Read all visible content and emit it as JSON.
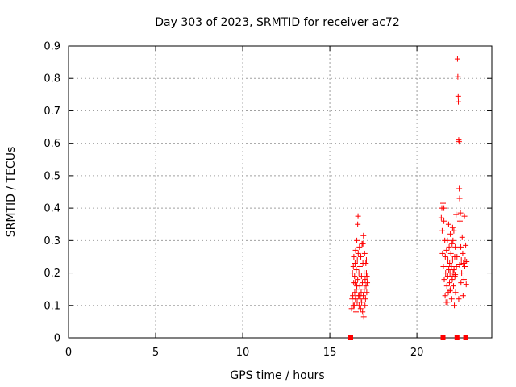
{
  "chart_data": {
    "type": "scatter",
    "title": "Day 303 of 2023, SRMTID for receiver ac72",
    "xlabel": "GPS time / hours",
    "ylabel": "SRMTID / TECUs",
    "xlim": [
      0,
      24.3
    ],
    "ylim": [
      0,
      0.9
    ],
    "xticks": [
      0,
      5,
      10,
      15,
      20
    ],
    "yticks": [
      0,
      0.1,
      0.2,
      0.3,
      0.4,
      0.5,
      0.6,
      0.7,
      0.8,
      0.9
    ],
    "xtick_labels": [
      "0",
      "5",
      "10",
      "15",
      "20"
    ],
    "ytick_labels": [
      "0",
      "0.1",
      "0.2",
      "0.3",
      "0.4",
      "0.5",
      "0.6",
      "0.7",
      "0.8",
      "0.9"
    ],
    "grid": true,
    "marker_color": "#ff0000",
    "series": [
      {
        "marker": "plus",
        "points": [
          [
            16.25,
            0.09
          ],
          [
            16.28,
            0.12
          ],
          [
            16.3,
            0.2
          ],
          [
            16.32,
            0.13
          ],
          [
            16.35,
            0.22
          ],
          [
            16.37,
            0.17
          ],
          [
            16.38,
            0.25
          ],
          [
            16.4,
            0.1
          ],
          [
            16.42,
            0.19
          ],
          [
            16.43,
            0.14
          ],
          [
            16.45,
            0.23
          ],
          [
            16.47,
            0.12
          ],
          [
            16.48,
            0.27
          ],
          [
            16.5,
            0.08
          ],
          [
            16.52,
            0.21
          ],
          [
            16.53,
            0.15
          ],
          [
            16.55,
            0.3
          ],
          [
            16.57,
            0.11
          ],
          [
            16.58,
            0.24
          ],
          [
            16.6,
            0.35
          ],
          [
            16.6,
            0.18
          ],
          [
            16.62,
            0.375
          ],
          [
            16.63,
            0.26
          ],
          [
            16.65,
            0.13
          ],
          [
            16.67,
            0.2
          ],
          [
            16.68,
            0.1
          ],
          [
            16.7,
            0.28
          ],
          [
            16.72,
            0.16
          ],
          [
            16.73,
            0.22
          ],
          [
            16.75,
            0.12
          ],
          [
            16.77,
            0.09
          ],
          [
            16.78,
            0.25
          ],
          [
            16.8,
            0.14
          ],
          [
            16.82,
            0.19
          ],
          [
            16.83,
            0.11
          ],
          [
            16.85,
            0.29
          ],
          [
            16.87,
            0.17
          ],
          [
            16.88,
            0.08
          ],
          [
            16.9,
            0.23
          ],
          [
            16.92,
            0.13
          ],
          [
            16.93,
            0.315
          ],
          [
            16.95,
            0.065
          ],
          [
            16.97,
            0.2
          ],
          [
            16.98,
            0.15
          ],
          [
            17.0,
            0.26
          ],
          [
            17.02,
            0.1
          ],
          [
            17.03,
            0.18
          ],
          [
            17.05,
            0.12
          ],
          [
            17.07,
            0.23
          ],
          [
            17.08,
            0.16
          ],
          [
            17.1,
            0.2
          ],
          [
            17.12,
            0.14
          ],
          [
            17.13,
            0.19
          ],
          [
            17.15,
            0.17
          ],
          [
            17.1,
            0.24
          ],
          [
            16.45,
            0.17
          ],
          [
            16.35,
            0.1
          ],
          [
            16.7,
            0.13
          ],
          [
            16.9,
            0.29
          ],
          [
            16.55,
            0.16
          ],
          [
            21.4,
            0.37
          ],
          [
            21.43,
            0.4
          ],
          [
            21.45,
            0.33
          ],
          [
            21.47,
            0.26
          ],
          [
            21.5,
            0.415
          ],
          [
            21.52,
            0.22
          ],
          [
            21.55,
            0.36
          ],
          [
            21.57,
            0.18
          ],
          [
            21.6,
            0.3
          ],
          [
            21.62,
            0.13
          ],
          [
            21.63,
            0.25
          ],
          [
            21.65,
            0.2
          ],
          [
            21.67,
            0.11
          ],
          [
            21.7,
            0.27
          ],
          [
            21.72,
            0.16
          ],
          [
            21.73,
            0.22
          ],
          [
            21.75,
            0.3
          ],
          [
            21.77,
            0.19
          ],
          [
            21.78,
            0.24
          ],
          [
            21.8,
            0.14
          ],
          [
            21.82,
            0.35
          ],
          [
            21.83,
            0.21
          ],
          [
            21.85,
            0.28
          ],
          [
            21.87,
            0.17
          ],
          [
            21.88,
            0.23
          ],
          [
            21.9,
            0.2
          ],
          [
            21.92,
            0.32
          ],
          [
            21.93,
            0.15
          ],
          [
            21.95,
            0.26
          ],
          [
            21.97,
            0.19
          ],
          [
            21.98,
            0.22
          ],
          [
            22.0,
            0.12
          ],
          [
            22.02,
            0.29
          ],
          [
            22.03,
            0.18
          ],
          [
            22.05,
            0.24
          ],
          [
            22.07,
            0.3
          ],
          [
            22.08,
            0.2
          ],
          [
            22.1,
            0.16
          ],
          [
            22.12,
            0.33
          ],
          [
            22.13,
            0.21
          ],
          [
            22.15,
            0.1
          ],
          [
            22.17,
            0.25
          ],
          [
            22.18,
            0.19
          ],
          [
            22.2,
            0.28
          ],
          [
            22.22,
            0.14
          ],
          [
            22.25,
            0.38
          ],
          [
            22.27,
            0.22
          ],
          [
            22.3,
            0.25
          ],
          [
            22.33,
            0.86
          ],
          [
            22.35,
            0.805
          ],
          [
            22.37,
            0.745
          ],
          [
            22.38,
            0.728
          ],
          [
            22.4,
            0.61
          ],
          [
            22.42,
            0.605
          ],
          [
            22.43,
            0.46
          ],
          [
            22.45,
            0.43
          ],
          [
            22.47,
            0.36
          ],
          [
            22.5,
            0.385
          ],
          [
            22.52,
            0.28
          ],
          [
            22.53,
            0.17
          ],
          [
            22.55,
            0.24
          ],
          [
            22.57,
            0.2
          ],
          [
            22.6,
            0.31
          ],
          [
            22.63,
            0.26
          ],
          [
            22.65,
            0.13
          ],
          [
            22.67,
            0.23
          ],
          [
            22.7,
            0.18
          ],
          [
            22.73,
            0.375
          ],
          [
            22.75,
            0.22
          ],
          [
            22.77,
            0.24
          ],
          [
            22.8,
            0.285
          ],
          [
            22.83,
            0.165
          ],
          [
            22.85,
            0.235
          ],
          [
            22.4,
            0.12
          ],
          [
            22.45,
            0.225
          ],
          [
            21.75,
            0.11
          ],
          [
            22.05,
            0.34
          ],
          [
            21.55,
            0.4
          ],
          [
            22.2,
            0.195
          ],
          [
            21.9,
            0.145
          ]
        ]
      },
      {
        "marker": "square",
        "points": [
          [
            16.2,
            0
          ],
          [
            21.5,
            0
          ],
          [
            22.3,
            0
          ],
          [
            22.8,
            0
          ]
        ]
      }
    ]
  }
}
